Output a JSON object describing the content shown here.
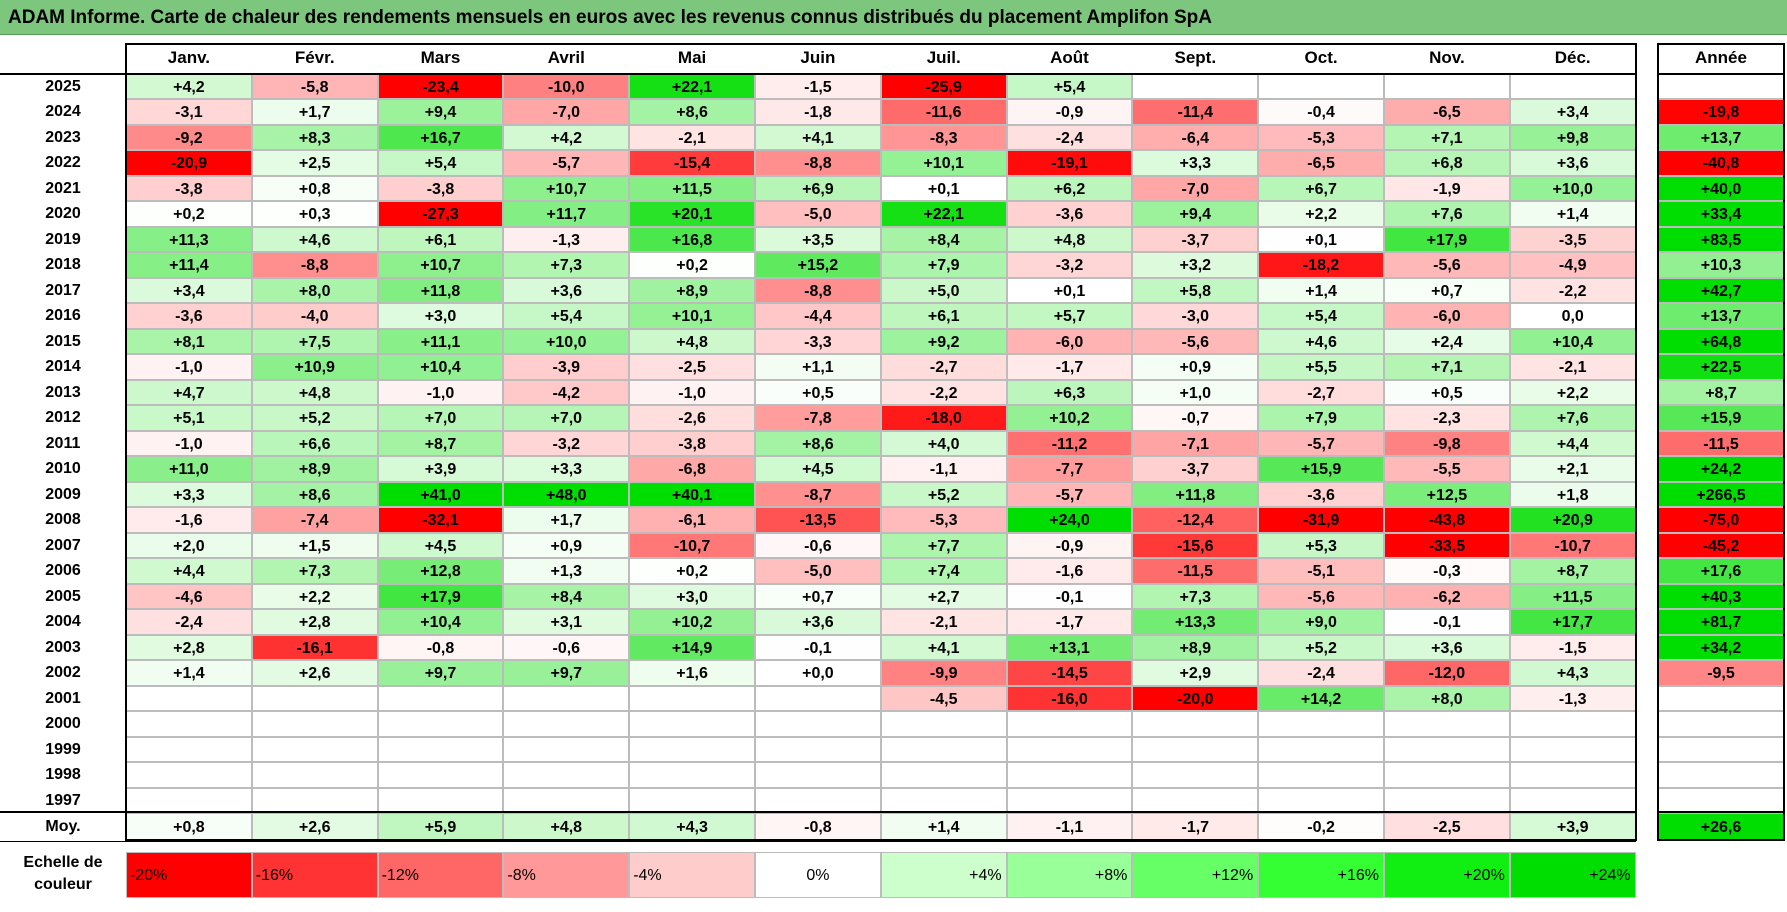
{
  "title": "ADAM Informe. Carte de chaleur des rendements mensuels en euros avec les revenus connus distribués du placement Amplifon SpA",
  "chart_data": {
    "type": "heatmap",
    "months": [
      "Janv.",
      "Févr.",
      "Mars",
      "Avril",
      "Mai",
      "Juin",
      "Juil.",
      "Août",
      "Sept.",
      "Oct.",
      "Nov.",
      "Déc."
    ],
    "year_header": "Année",
    "rows": [
      {
        "year": "2025",
        "values": [
          "+4,2",
          "-5,8",
          "-23,4",
          "-10,0",
          "+22,1",
          "-1,5",
          "-25,9",
          "+5,4",
          "",
          "",
          "",
          ""
        ],
        "annual": ""
      },
      {
        "year": "2024",
        "values": [
          "-3,1",
          "+1,7",
          "+9,4",
          "-7,0",
          "+8,6",
          "-1,8",
          "-11,6",
          "-0,9",
          "-11,4",
          "-0,4",
          "-6,5",
          "+3,4"
        ],
        "annual": "-19,8"
      },
      {
        "year": "2023",
        "values": [
          "-9,2",
          "+8,3",
          "+16,7",
          "+4,2",
          "-2,1",
          "+4,1",
          "-8,3",
          "-2,4",
          "-6,4",
          "-5,3",
          "+7,1",
          "+9,8"
        ],
        "annual": "+13,7"
      },
      {
        "year": "2022",
        "values": [
          "-20,9",
          "+2,5",
          "+5,4",
          "-5,7",
          "-15,4",
          "-8,8",
          "+10,1",
          "-19,1",
          "+3,3",
          "-6,5",
          "+6,8",
          "+3,6"
        ],
        "annual": "-40,8"
      },
      {
        "year": "2021",
        "values": [
          "-3,8",
          "+0,8",
          "-3,8",
          "+10,7",
          "+11,5",
          "+6,9",
          "+0,1",
          "+6,2",
          "-7,0",
          "+6,7",
          "-1,9",
          "+10,0"
        ],
        "annual": "+40,0"
      },
      {
        "year": "2020",
        "values": [
          "+0,2",
          "+0,3",
          "-27,3",
          "+11,7",
          "+20,1",
          "-5,0",
          "+22,1",
          "-3,6",
          "+9,4",
          "+2,2",
          "+7,6",
          "+1,4"
        ],
        "annual": "+33,4"
      },
      {
        "year": "2019",
        "values": [
          "+11,3",
          "+4,6",
          "+6,1",
          "-1,3",
          "+16,8",
          "+3,5",
          "+8,4",
          "+4,8",
          "-3,7",
          "+0,1",
          "+17,9",
          "-3,5"
        ],
        "annual": "+83,5"
      },
      {
        "year": "2018",
        "values": [
          "+11,4",
          "-8,8",
          "+10,7",
          "+7,3",
          "+0,2",
          "+15,2",
          "+7,9",
          "-3,2",
          "+3,2",
          "-18,2",
          "-5,6",
          "-4,9"
        ],
        "annual": "+10,3"
      },
      {
        "year": "2017",
        "values": [
          "+3,4",
          "+8,0",
          "+11,8",
          "+3,6",
          "+8,9",
          "-8,8",
          "+5,0",
          "+0,1",
          "+5,8",
          "+1,4",
          "+0,7",
          "-2,2"
        ],
        "annual": "+42,7"
      },
      {
        "year": "2016",
        "values": [
          "-3,6",
          "-4,0",
          "+3,0",
          "+5,4",
          "+10,1",
          "-4,4",
          "+6,1",
          "+5,7",
          "-3,0",
          "+5,4",
          "-6,0",
          "0,0"
        ],
        "annual": "+13,7"
      },
      {
        "year": "2015",
        "values": [
          "+8,1",
          "+7,5",
          "+11,1",
          "+10,0",
          "+4,8",
          "-3,3",
          "+9,2",
          "-6,0",
          "-5,6",
          "+4,6",
          "+2,4",
          "+10,4"
        ],
        "annual": "+64,8"
      },
      {
        "year": "2014",
        "values": [
          "-1,0",
          "+10,9",
          "+10,4",
          "-3,9",
          "-2,5",
          "+1,1",
          "-2,7",
          "-1,7",
          "+0,9",
          "+5,5",
          "+7,1",
          "-2,1"
        ],
        "annual": "+22,5"
      },
      {
        "year": "2013",
        "values": [
          "+4,7",
          "+4,8",
          "-1,0",
          "-4,2",
          "-1,0",
          "+0,5",
          "-2,2",
          "+6,3",
          "+1,0",
          "-2,7",
          "+0,5",
          "+2,2"
        ],
        "annual": "+8,7"
      },
      {
        "year": "2012",
        "values": [
          "+5,1",
          "+5,2",
          "+7,0",
          "+7,0",
          "-2,6",
          "-7,8",
          "-18,0",
          "+10,2",
          "-0,7",
          "+7,9",
          "-2,3",
          "+7,6"
        ],
        "annual": "+15,9"
      },
      {
        "year": "2011",
        "values": [
          "-1,0",
          "+6,6",
          "+8,7",
          "-3,2",
          "-3,8",
          "+8,6",
          "+4,0",
          "-11,2",
          "-7,1",
          "-5,7",
          "-9,8",
          "+4,4"
        ],
        "annual": "-11,5"
      },
      {
        "year": "2010",
        "values": [
          "+11,0",
          "+8,9",
          "+3,9",
          "+3,3",
          "-6,8",
          "+4,5",
          "-1,1",
          "-7,7",
          "-3,7",
          "+15,9",
          "-5,5",
          "+2,1"
        ],
        "annual": "+24,2"
      },
      {
        "year": "2009",
        "values": [
          "+3,3",
          "+8,6",
          "+41,0",
          "+48,0",
          "+40,1",
          "-8,7",
          "+5,2",
          "-5,7",
          "+11,8",
          "-3,6",
          "+12,5",
          "+1,8"
        ],
        "annual": "+266,5"
      },
      {
        "year": "2008",
        "values": [
          "-1,6",
          "-7,4",
          "-32,1",
          "+1,7",
          "-6,1",
          "-13,5",
          "-5,3",
          "+24,0",
          "-12,4",
          "-31,9",
          "-43,8",
          "+20,9"
        ],
        "annual": "-75,0"
      },
      {
        "year": "2007",
        "values": [
          "+2,0",
          "+1,5",
          "+4,5",
          "+0,9",
          "-10,7",
          "-0,6",
          "+7,7",
          "-0,9",
          "-15,6",
          "+5,3",
          "-33,5",
          "-10,7"
        ],
        "annual": "-45,2"
      },
      {
        "year": "2006",
        "values": [
          "+4,4",
          "+7,3",
          "+12,8",
          "+1,3",
          "+0,2",
          "-5,0",
          "+7,4",
          "-1,6",
          "-11,5",
          "-5,1",
          "-0,3",
          "+8,7"
        ],
        "annual": "+17,6"
      },
      {
        "year": "2005",
        "values": [
          "-4,6",
          "+2,2",
          "+17,9",
          "+8,4",
          "+3,0",
          "+0,7",
          "+2,7",
          "-0,1",
          "+7,3",
          "-5,6",
          "-6,2",
          "+11,5"
        ],
        "annual": "+40,3"
      },
      {
        "year": "2004",
        "values": [
          "-2,4",
          "+2,8",
          "+10,4",
          "+3,1",
          "+10,2",
          "+3,6",
          "-2,1",
          "-1,7",
          "+13,3",
          "+9,0",
          "-0,1",
          "+17,7"
        ],
        "annual": "+81,7"
      },
      {
        "year": "2003",
        "values": [
          "+2,8",
          "-16,1",
          "-0,8",
          "-0,6",
          "+14,9",
          "-0,1",
          "+4,1",
          "+13,1",
          "+8,9",
          "+5,2",
          "+3,6",
          "-1,5"
        ],
        "annual": "+34,2"
      },
      {
        "year": "2002",
        "values": [
          "+1,4",
          "+2,6",
          "+9,7",
          "+9,7",
          "+1,6",
          "+0,0",
          "-9,9",
          "-14,5",
          "+2,9",
          "-2,4",
          "-12,0",
          "+4,3"
        ],
        "annual": "-9,5"
      },
      {
        "year": "2001",
        "values": [
          "",
          "",
          "",
          "",
          "",
          "",
          "-4,5",
          "-16,0",
          "-20,0",
          "+14,2",
          "+8,0",
          "-1,3"
        ],
        "annual": ""
      },
      {
        "year": "2000",
        "values": [
          "",
          "",
          "",
          "",
          "",
          "",
          "",
          "",
          "",
          "",
          "",
          ""
        ],
        "annual": ""
      },
      {
        "year": "1999",
        "values": [
          "",
          "",
          "",
          "",
          "",
          "",
          "",
          "",
          "",
          "",
          "",
          ""
        ],
        "annual": ""
      },
      {
        "year": "1998",
        "values": [
          "",
          "",
          "",
          "",
          "",
          "",
          "",
          "",
          "",
          "",
          "",
          ""
        ],
        "annual": ""
      },
      {
        "year": "1997",
        "values": [
          "",
          "",
          "",
          "",
          "",
          "",
          "",
          "",
          "",
          "",
          "",
          ""
        ],
        "annual": ""
      }
    ],
    "average": {
      "label": "Moy.",
      "values": [
        "+0,8",
        "+2,6",
        "+5,9",
        "+4,8",
        "+4,3",
        "-0,8",
        "+1,4",
        "-1,1",
        "-1,7",
        "-0,2",
        "-2,5",
        "+3,9"
      ],
      "annual": "+26,6"
    },
    "scale": {
      "label_line1": "Echelle de",
      "label_line2": "couleur",
      "steps": [
        {
          "label": "-20%",
          "color": "#ff0000"
        },
        {
          "label": "-16%",
          "color": "#ff3333"
        },
        {
          "label": "-12%",
          "color": "#ff6666"
        },
        {
          "label": "-8%",
          "color": "#ff9999"
        },
        {
          "label": "-4%",
          "color": "#ffcccc"
        },
        {
          "label": "0%",
          "color": "#ffffff"
        },
        {
          "label": "+4%",
          "color": "#ccffcc"
        },
        {
          "label": "+8%",
          "color": "#99ff99"
        },
        {
          "label": "+12%",
          "color": "#66ff66"
        },
        {
          "label": "+16%",
          "color": "#33ff33"
        },
        {
          "label": "+20%",
          "color": "#11ee11"
        },
        {
          "label": "+24%",
          "color": "#00dd00"
        }
      ]
    }
  }
}
